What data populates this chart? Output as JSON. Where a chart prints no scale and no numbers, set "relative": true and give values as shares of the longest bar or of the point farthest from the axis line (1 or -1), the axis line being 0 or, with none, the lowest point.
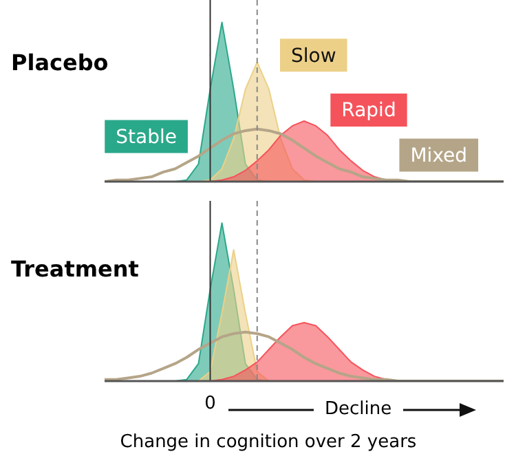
{
  "chart_data": [
    {
      "type": "area",
      "title": "Placebo",
      "relative": true,
      "grid": false,
      "legend": false,
      "categories": [
        null,
        null,
        null,
        null,
        null,
        null,
        null,
        null,
        null,
        null,
        null,
        null,
        null,
        null,
        null,
        null,
        null,
        null,
        null,
        null,
        null,
        null,
        null,
        null,
        null,
        null,
        null,
        null,
        null,
        null,
        null,
        null,
        null,
        null,
        null
      ],
      "series": [
        {
          "name": "Stable",
          "color": "#2aa88a",
          "values": [
            0,
            0,
            0,
            0,
            0,
            0,
            0,
            0.01,
            0.11,
            0.58,
            1,
            0.58,
            0.11,
            0.01,
            0,
            0,
            0,
            0,
            0,
            0,
            0,
            0,
            0,
            0,
            0,
            0,
            0,
            0,
            0,
            0,
            0,
            0,
            0,
            0,
            0
          ]
        },
        {
          "name": "Slow",
          "color": "#ecd088",
          "values": [
            0,
            0,
            0,
            0,
            0,
            0,
            0,
            0,
            0,
            0.01,
            0.08,
            0.27,
            0.58,
            0.75,
            0.58,
            0.27,
            0.08,
            0.01,
            0,
            0,
            0,
            0,
            0,
            0,
            0,
            0,
            0,
            0,
            0,
            0,
            0,
            0,
            0,
            0,
            0
          ]
        },
        {
          "name": "Rapid",
          "color": "#f5535b",
          "values": [
            0,
            0,
            0,
            0,
            0,
            0,
            0,
            0,
            0,
            0,
            0.01,
            0.03,
            0.07,
            0.13,
            0.2,
            0.29,
            0.35,
            0.38,
            0.35,
            0.29,
            0.2,
            0.13,
            0.07,
            0.03,
            0.01,
            0,
            0,
            0,
            0,
            0,
            0,
            0,
            0,
            0,
            0
          ]
        },
        {
          "name": "Mixed",
          "type": "line",
          "color": "#b5a588",
          "values": [
            0,
            0.01,
            0.01,
            0.02,
            0.03,
            0.06,
            0.08,
            0.12,
            0.16,
            0.21,
            0.26,
            0.3,
            0.32,
            0.33,
            0.32,
            0.3,
            0.26,
            0.21,
            0.16,
            0.12,
            0.08,
            0.06,
            0.03,
            0.02,
            0.01,
            0.01,
            0,
            0,
            0,
            0,
            0,
            0,
            0,
            0,
            0
          ]
        }
      ]
    },
    {
      "type": "area",
      "title": "Treatment",
      "relative": true,
      "grid": false,
      "legend": false,
      "xlabel": "Change in cognition over 2 years",
      "annotations": [
        "0",
        "Decline"
      ],
      "categories": [
        null,
        null,
        null,
        null,
        null,
        null,
        null,
        null,
        null,
        null,
        null,
        null,
        null,
        null,
        null,
        null,
        null,
        null,
        null,
        null,
        null,
        null,
        null,
        null,
        null,
        null,
        null,
        null,
        null,
        null,
        null,
        null,
        null,
        null,
        null
      ],
      "series": [
        {
          "color": "#2aa88a",
          "values": [
            0,
            0,
            0,
            0,
            0,
            0,
            0,
            0.01,
            0.11,
            0.58,
            1,
            0.58,
            0.11,
            0.01,
            0,
            0,
            0,
            0,
            0,
            0,
            0,
            0,
            0,
            0,
            0,
            0,
            0,
            0,
            0,
            0,
            0,
            0,
            0,
            0,
            0
          ]
        },
        {
          "color": "#ecd088",
          "values": [
            0,
            0,
            0,
            0,
            0,
            0,
            0,
            0,
            0,
            0.06,
            0.43,
            0.83,
            0.43,
            0.06,
            0,
            0,
            0,
            0,
            0,
            0,
            0,
            0,
            0,
            0,
            0,
            0,
            0,
            0,
            0,
            0,
            0,
            0,
            0,
            0,
            0
          ]
        },
        {
          "color": "#f5535b",
          "values": [
            0,
            0,
            0,
            0,
            0,
            0,
            0,
            0,
            0,
            0,
            0.01,
            0.03,
            0.07,
            0.12,
            0.2,
            0.28,
            0.35,
            0.37,
            0.35,
            0.28,
            0.2,
            0.12,
            0.07,
            0.03,
            0.01,
            0,
            0,
            0,
            0,
            0,
            0,
            0,
            0,
            0,
            0
          ]
        },
        {
          "type": "line",
          "color": "#b5a588",
          "values": [
            0.01,
            0.01,
            0.02,
            0.03,
            0.05,
            0.08,
            0.11,
            0.15,
            0.2,
            0.24,
            0.28,
            0.3,
            0.31,
            0.3,
            0.28,
            0.24,
            0.2,
            0.15,
            0.11,
            0.08,
            0.05,
            0.03,
            0.02,
            0.01,
            0.01,
            0,
            0,
            0,
            0,
            0,
            0,
            0,
            0,
            0,
            0
          ]
        }
      ]
    }
  ]
}
